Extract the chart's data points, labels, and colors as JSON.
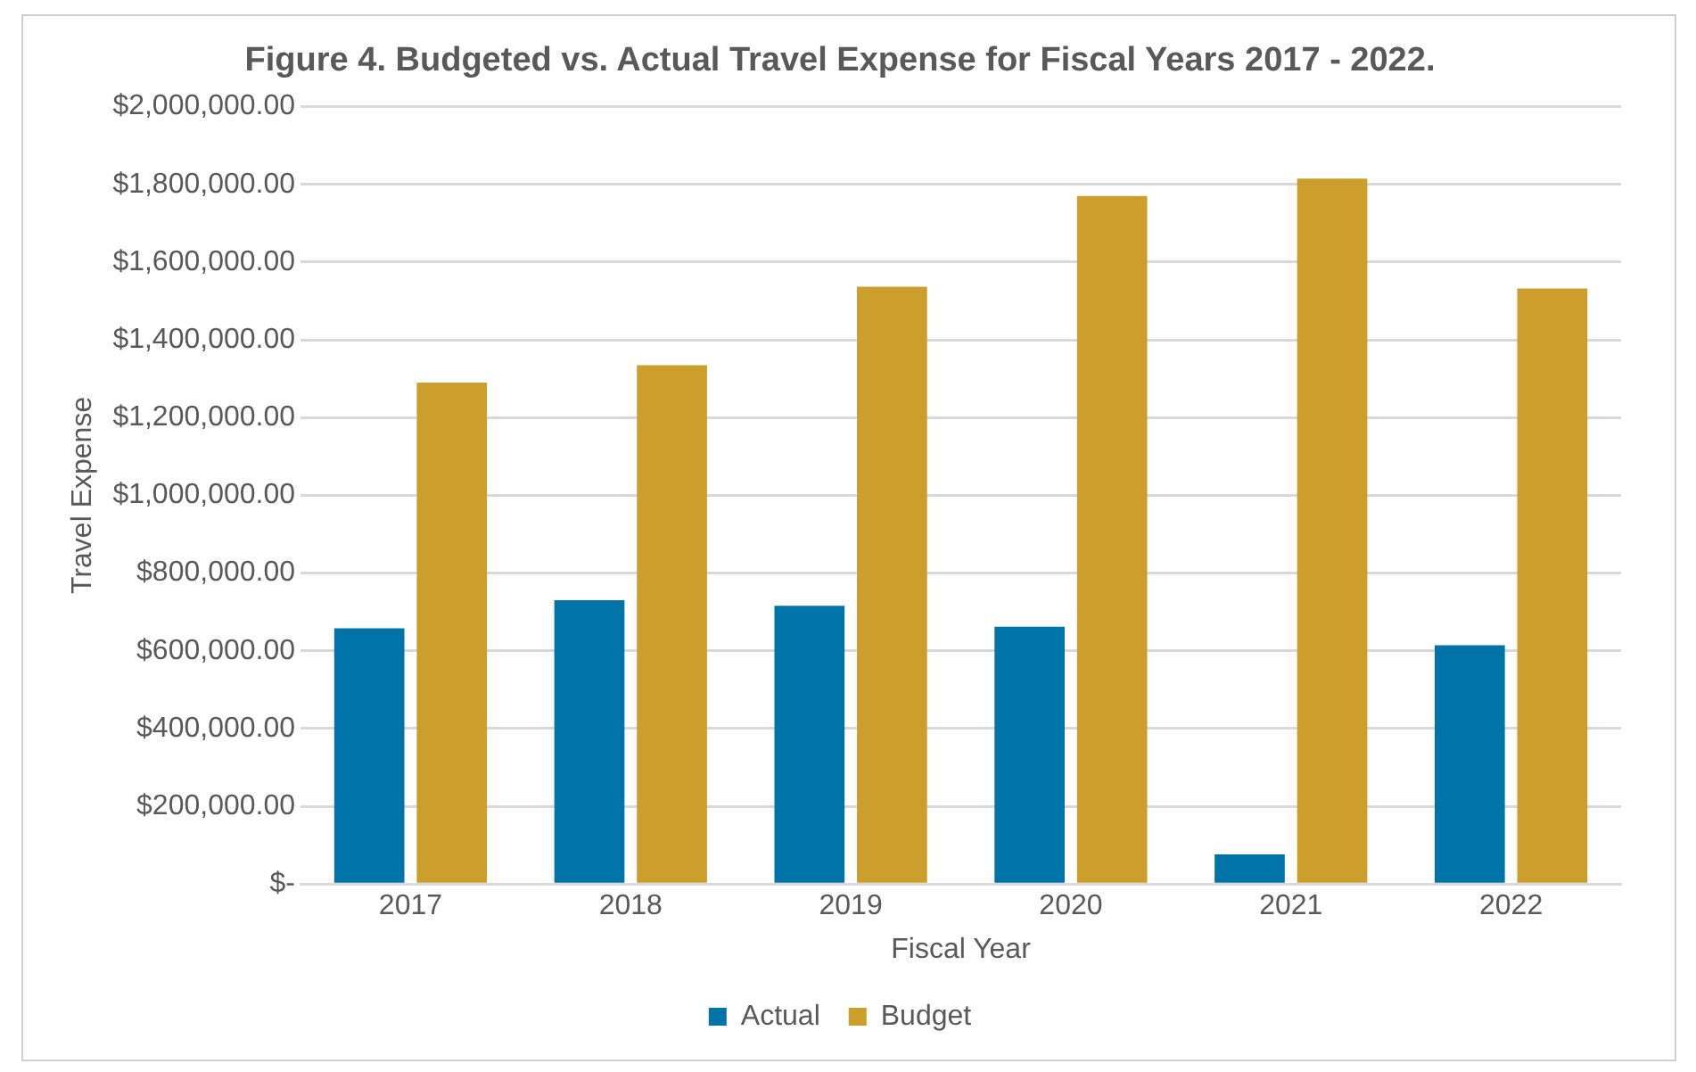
{
  "chart_data": {
    "type": "bar",
    "title": "Figure 4. Budgeted vs. Actual Travel Expense for Fiscal Years 2017 - 2022.",
    "xlabel": "Fiscal Year",
    "ylabel": "Travel Expense",
    "categories": [
      "2017",
      "2018",
      "2019",
      "2020",
      "2021",
      "2022"
    ],
    "series": [
      {
        "name": "Actual",
        "color": "#0073a8",
        "values": [
          658000,
          730000,
          716000,
          662000,
          76000,
          614000
        ]
      },
      {
        "name": "Budget",
        "color": "#cc9e2c",
        "values": [
          1290000,
          1335000,
          1537000,
          1770000,
          1815000,
          1532000
        ]
      }
    ],
    "ylim": [
      0,
      2000000
    ],
    "yticks": [
      {
        "value": 0,
        "label": "$-"
      },
      {
        "value": 200000,
        "label": "$200,000.00"
      },
      {
        "value": 400000,
        "label": "$400,000.00"
      },
      {
        "value": 600000,
        "label": "$600,000.00"
      },
      {
        "value": 800000,
        "label": "$800,000.00"
      },
      {
        "value": 1000000,
        "label": "$1,000,000.00"
      },
      {
        "value": 1200000,
        "label": "$1,200,000.00"
      },
      {
        "value": 1400000,
        "label": "$1,400,000.00"
      },
      {
        "value": 1600000,
        "label": "$1,600,000.00"
      },
      {
        "value": 1800000,
        "label": "$1,800,000.00"
      },
      {
        "value": 2000000,
        "label": "$2,000,000.00"
      }
    ],
    "grid": "y",
    "legend": "bottom"
  }
}
